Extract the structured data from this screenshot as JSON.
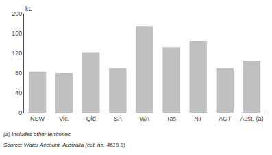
{
  "chart_data": {
    "type": "bar",
    "categories": [
      "NSW",
      "Vic.",
      "Qld",
      "SA",
      "WA",
      "Tas",
      "NT",
      "ACT",
      "Aust. (a)"
    ],
    "values": [
      83,
      80,
      122,
      90,
      175,
      132,
      145,
      90,
      105
    ],
    "color": "#c0c0c0",
    "ylabel": "kL",
    "ylim": [
      0,
      200
    ],
    "yticks": [
      0,
      40,
      80,
      120,
      160,
      200
    ],
    "grid": false,
    "annotations": [
      "(a) Includes other territories.",
      "Source: Water Account, Australia (cat. no. 4610.0)"
    ]
  }
}
